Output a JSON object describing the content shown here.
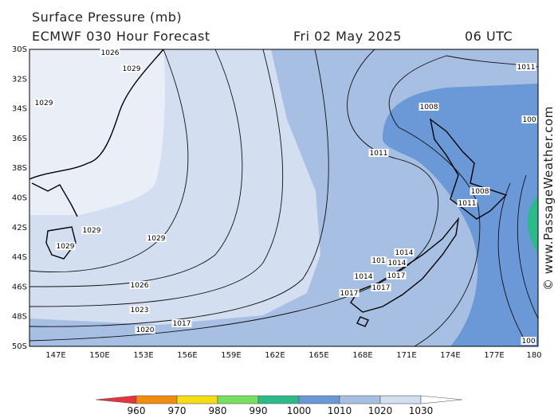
{
  "header": {
    "title": "Surface Pressure (mb)",
    "subtitle": "ECMWF 030 Hour Forecast",
    "date": "Fri 02 May 2025",
    "time": "06 UTC"
  },
  "latitude_labels": [
    "30S",
    "32S",
    "34S",
    "36S",
    "38S",
    "40S",
    "42S",
    "44S",
    "46S",
    "48S",
    "50S"
  ],
  "longitude_labels": [
    "147E",
    "150E",
    "153E",
    "156E",
    "159E",
    "162E",
    "165E",
    "168E",
    "171E",
    "174E",
    "177E",
    "180"
  ],
  "isobar_labels": [
    "1026",
    "1029",
    "1029",
    "1029",
    "1029",
    "1029",
    "1026",
    "1023",
    "1020",
    "1017",
    "1011",
    "1008",
    "1011",
    "1008",
    "1011",
    "1014",
    "101",
    "1014",
    "1017",
    "1014",
    "1017",
    "1017",
    "100",
    "100"
  ],
  "colorbar": {
    "labels": [
      960,
      970,
      980,
      990,
      1000,
      1010,
      1020,
      1030
    ],
    "colors": [
      "#e8323c",
      "#f28c0f",
      "#f5dc14",
      "#78e060",
      "#2dba8a",
      "#6b98d6",
      "#a6bfe3",
      "#d3def0",
      "#ffffff"
    ]
  },
  "watermark": "© www.PassageWeather.com"
}
